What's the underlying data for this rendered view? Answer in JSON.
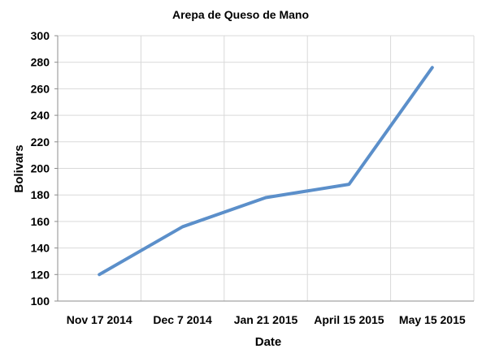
{
  "chart_data": {
    "type": "line",
    "title": "Arepa de Queso de Mano",
    "xlabel": "Date",
    "ylabel": "Bolivars",
    "categories": [
      "Nov 17 2014",
      "Dec 7 2014",
      "Jan 21 2015",
      "April 15 2015",
      "May 15 2015"
    ],
    "series": [
      {
        "values": [
          120,
          156,
          178,
          188,
          276
        ],
        "color": "#5b8fca"
      }
    ],
    "ylim": [
      100,
      300
    ],
    "yticks": [
      100,
      120,
      140,
      160,
      180,
      200,
      220,
      240,
      260,
      280,
      300
    ],
    "grid": true,
    "legend": "none"
  }
}
